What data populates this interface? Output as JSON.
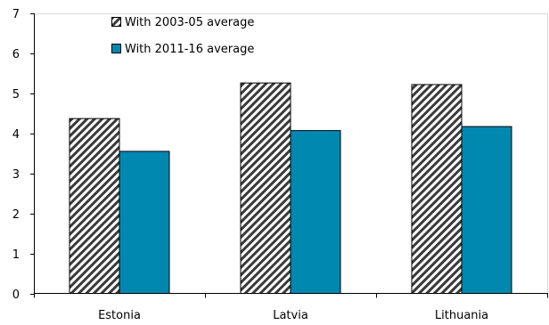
{
  "chart_data": {
    "type": "bar",
    "categories": [
      "Estonia",
      "Latvia",
      "Lithuania"
    ],
    "series": [
      {
        "name": "With 2003-05 average",
        "values": [
          4.37,
          5.26,
          5.22
        ],
        "color": "#ffffff",
        "fill": "diagonal-hatch"
      },
      {
        "name": "With 2011-16 average",
        "values": [
          3.55,
          4.07,
          4.17
        ],
        "color": "#0088b0",
        "fill": "solid"
      }
    ],
    "ylim": [
      0,
      7
    ],
    "yticks": [
      "0",
      "1",
      "2",
      "3",
      "4",
      "5",
      "6",
      "7"
    ],
    "title": "",
    "xlabel": "",
    "ylabel": "",
    "grid": false,
    "legend_position": "top-left"
  }
}
